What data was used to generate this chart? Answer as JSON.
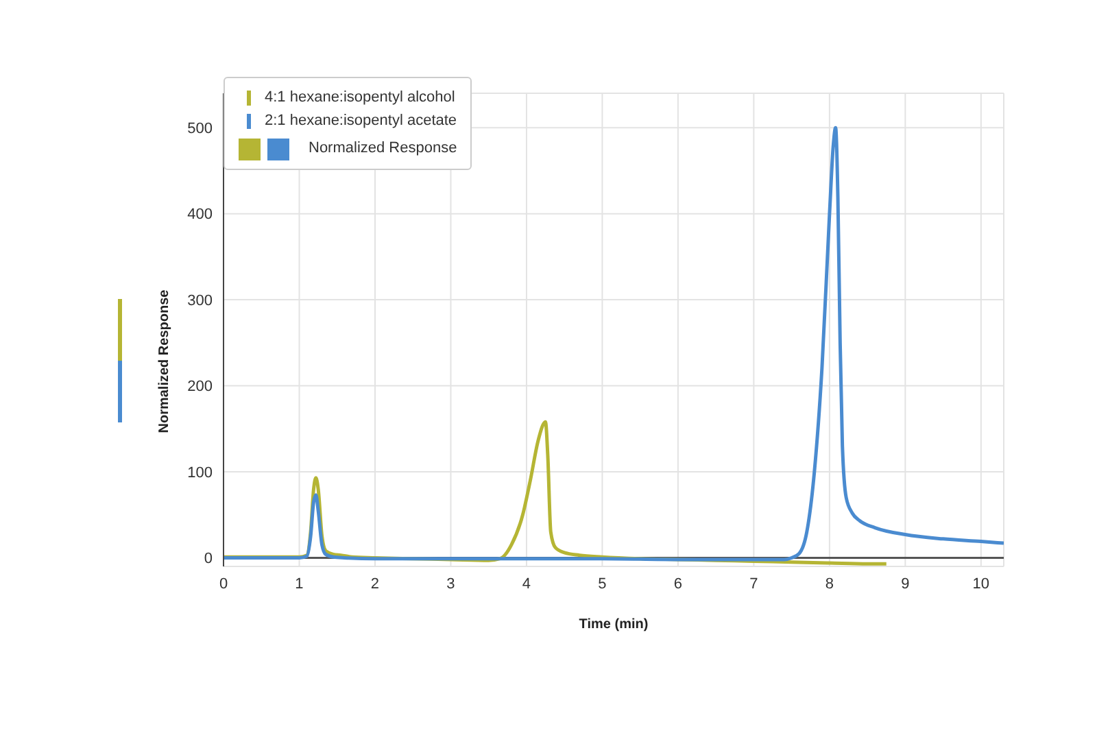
{
  "chart_data": {
    "type": "line",
    "xlabel": "Time (min)",
    "ylabel": "Normalized Response",
    "legend_title": "Normalized Response",
    "xlim": [
      0,
      10.3
    ],
    "xticks": [
      0,
      1,
      2,
      3,
      4,
      5,
      6,
      7,
      8,
      9,
      10
    ],
    "ylim": [
      -10,
      540
    ],
    "yticks": [
      0,
      100,
      200,
      300,
      400,
      500
    ],
    "grid": true,
    "legend": "top left",
    "marker": "none",
    "line_style": "solid",
    "ref_lines": [
      {
        "axis": "y",
        "value": 0,
        "color": "#555555"
      }
    ],
    "series": [
      {
        "name": "4:1 hexane:isopentyl alcohol",
        "color": "#b5b534",
        "x": [
          0,
          0.5,
          1.0,
          1.1,
          1.15,
          1.19,
          1.22,
          1.25,
          1.3,
          1.35,
          1.45,
          1.55,
          1.7,
          2.0,
          2.5,
          3.0,
          3.5,
          3.65,
          3.8,
          3.95,
          4.05,
          4.15,
          4.22,
          4.25,
          4.28,
          4.32,
          4.38,
          4.5,
          4.7,
          5.0,
          5.5,
          6.0,
          6.5,
          7.0,
          7.5,
          8.0,
          8.5,
          8.75
        ],
        "values": [
          1,
          1,
          1,
          3,
          30,
          80,
          93,
          80,
          25,
          8,
          4,
          3,
          1,
          0,
          -1,
          -2,
          -3,
          -1,
          15,
          50,
          90,
          135,
          155,
          158,
          120,
          30,
          12,
          6,
          3,
          1,
          -1,
          -2,
          -3,
          -4,
          -5,
          -6,
          -7,
          -7
        ]
      },
      {
        "name": "2:1 hexane:isopentyl acetate",
        "color": "#4a8bd0",
        "x": [
          0,
          0.5,
          1.0,
          1.1,
          1.15,
          1.19,
          1.22,
          1.25,
          1.3,
          1.35,
          1.45,
          1.6,
          2.0,
          3.0,
          4.0,
          5.0,
          6.0,
          7.0,
          7.4,
          7.5,
          7.6,
          7.7,
          7.8,
          7.9,
          8.0,
          8.05,
          8.08,
          8.11,
          8.14,
          8.17,
          8.22,
          8.3,
          8.4,
          8.6,
          9.0,
          9.5,
          10.0,
          10.3
        ],
        "values": [
          0,
          0,
          0,
          2,
          25,
          65,
          73,
          55,
          15,
          4,
          1,
          0,
          -1,
          -1,
          -1,
          -1,
          -2,
          -2,
          -2,
          0,
          5,
          30,
          100,
          220,
          400,
          480,
          500,
          420,
          250,
          130,
          70,
          52,
          43,
          35,
          27,
          22,
          19,
          17
        ]
      }
    ]
  }
}
